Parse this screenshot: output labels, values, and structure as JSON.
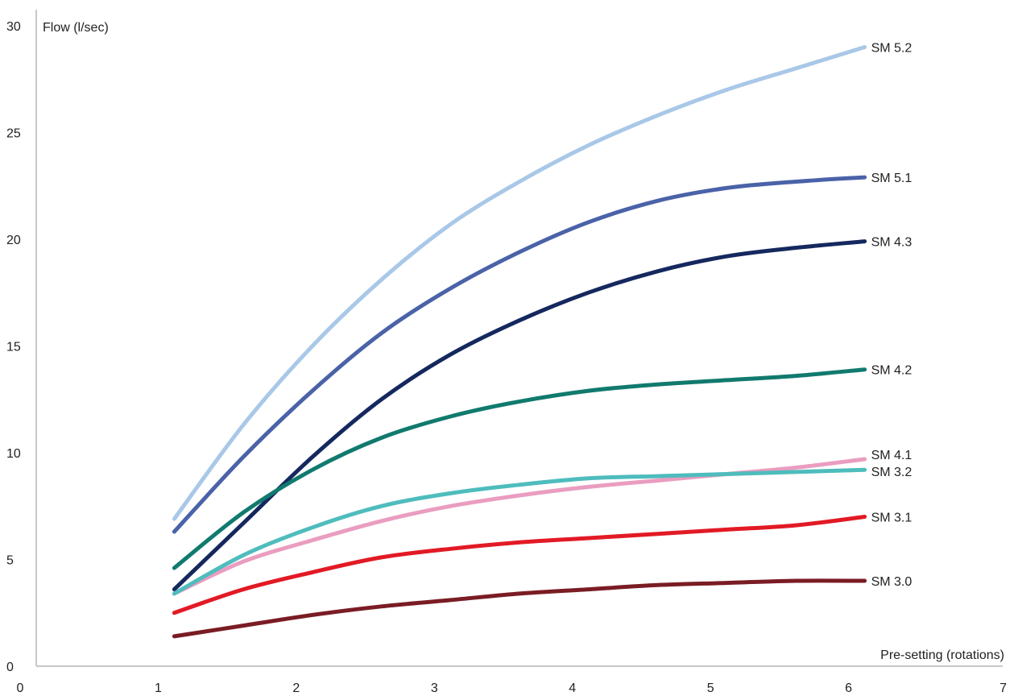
{
  "chart_data": {
    "type": "line",
    "title": "",
    "ylabel": "Flow (l/sec)",
    "xlabel": "Pre-setting (rotations)",
    "xlim": [
      0,
      7
    ],
    "ylim": [
      0,
      30
    ],
    "x_ticks": [
      "0",
      "1",
      "2",
      "3",
      "4",
      "5",
      "6",
      "7"
    ],
    "y_ticks": [
      "0",
      "5",
      "10",
      "15",
      "20",
      "25",
      "30"
    ],
    "grid": false,
    "legend": "direct labels at right end of lines",
    "x": [
      1,
      1.5,
      2,
      2.5,
      3,
      3.5,
      4,
      4.5,
      5,
      5.5,
      6
    ],
    "series": [
      {
        "name": "SM 5.2",
        "color": "#a9c8e8",
        "values": [
          6.9,
          11.3,
          15.0,
          18.1,
          20.7,
          22.7,
          24.4,
          25.8,
          27.0,
          28.0,
          29.0
        ]
      },
      {
        "name": "SM 5.1",
        "color": "#4a62a8",
        "values": [
          6.3,
          9.8,
          12.9,
          15.6,
          17.7,
          19.4,
          20.8,
          21.8,
          22.4,
          22.7,
          22.9
        ]
      },
      {
        "name": "SM 4.3",
        "color": "#15285e",
        "values": [
          3.6,
          6.7,
          9.8,
          12.5,
          14.6,
          16.2,
          17.5,
          18.5,
          19.2,
          19.6,
          19.9
        ]
      },
      {
        "name": "SM 4.2",
        "color": "#117a6e",
        "values": [
          4.6,
          7.2,
          9.2,
          10.7,
          11.7,
          12.4,
          12.9,
          13.2,
          13.4,
          13.6,
          13.9
        ]
      },
      {
        "name": "SM 4.1",
        "color": "#ea9dc0",
        "values": [
          3.4,
          4.9,
          5.9,
          6.8,
          7.5,
          8.0,
          8.4,
          8.7,
          9.0,
          9.3,
          9.7
        ]
      },
      {
        "name": "SM 3.2",
        "color": "#4fbcbd",
        "values": [
          3.4,
          5.2,
          6.5,
          7.5,
          8.1,
          8.5,
          8.8,
          8.9,
          9.0,
          9.1,
          9.2
        ]
      },
      {
        "name": "SM 3.1",
        "color": "#e21a25",
        "values": [
          2.5,
          3.6,
          4.4,
          5.1,
          5.5,
          5.8,
          6.0,
          6.2,
          6.4,
          6.6,
          7.0
        ]
      },
      {
        "name": "SM 3.0",
        "color": "#7a1c24",
        "values": [
          1.4,
          1.9,
          2.4,
          2.8,
          3.1,
          3.4,
          3.6,
          3.8,
          3.9,
          4.0,
          4.0
        ]
      }
    ]
  }
}
